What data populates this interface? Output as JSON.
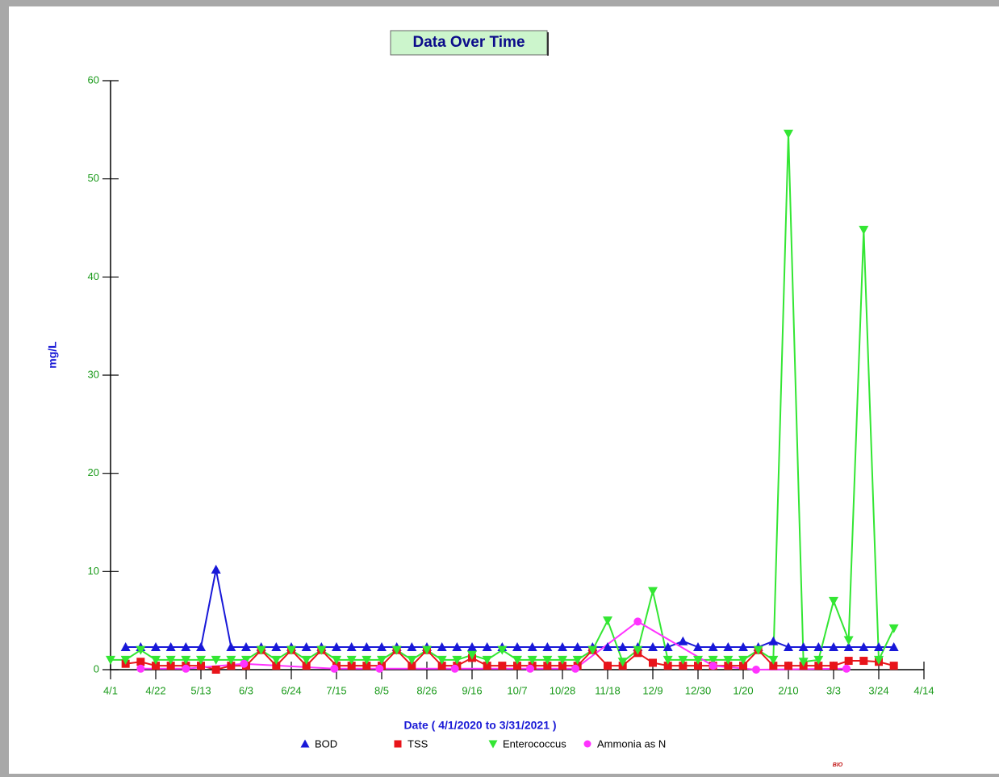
{
  "chart_data": {
    "type": "line",
    "title": "Data Over Time",
    "x_label": "Date  ( 4/1/2020  to  3/31/2021 )",
    "y_label": "mg/L",
    "logo_text": "BIO",
    "xlim": [
      0,
      378
    ],
    "xticks": [
      {
        "value": 0,
        "label": "4/1"
      },
      {
        "value": 21,
        "label": "4/22"
      },
      {
        "value": 42,
        "label": "5/13"
      },
      {
        "value": 63,
        "label": "6/3"
      },
      {
        "value": 84,
        "label": "6/24"
      },
      {
        "value": 105,
        "label": "7/15"
      },
      {
        "value": 126,
        "label": "8/5"
      },
      {
        "value": 147,
        "label": "8/26"
      },
      {
        "value": 168,
        "label": "9/16"
      },
      {
        "value": 189,
        "label": "10/7"
      },
      {
        "value": 210,
        "label": "10/28"
      },
      {
        "value": 231,
        "label": "11/18"
      },
      {
        "value": 252,
        "label": "12/9"
      },
      {
        "value": 273,
        "label": "12/30"
      },
      {
        "value": 294,
        "label": "1/20"
      },
      {
        "value": 315,
        "label": "2/10"
      },
      {
        "value": 336,
        "label": "3/3"
      },
      {
        "value": 357,
        "label": "3/24"
      },
      {
        "value": 378,
        "label": "4/14"
      }
    ],
    "ylim": [
      0,
      60
    ],
    "yticks": [
      0,
      10,
      20,
      30,
      40,
      50,
      60
    ],
    "series": [
      {
        "name": "BOD",
        "color": "#1818d8",
        "marker": "triangle-up",
        "x": [
          7,
          14,
          21,
          28,
          35,
          42,
          49,
          56,
          63,
          70,
          77,
          84,
          91,
          98,
          105,
          112,
          119,
          126,
          133,
          140,
          147,
          154,
          161,
          168,
          175,
          182,
          189,
          196,
          203,
          210,
          217,
          224,
          231,
          238,
          245,
          252,
          259,
          266,
          273,
          280,
          287,
          294,
          301,
          308,
          315,
          322,
          329,
          336,
          343,
          350,
          357,
          364
        ],
        "values": [
          2.3,
          2.3,
          2.3,
          2.3,
          2.3,
          2.3,
          10.2,
          2.3,
          2.3,
          2.3,
          2.3,
          2.3,
          2.3,
          2.3,
          2.3,
          2.3,
          2.3,
          2.3,
          2.3,
          2.3,
          2.3,
          2.3,
          2.3,
          2.3,
          2.3,
          2.3,
          2.3,
          2.3,
          2.3,
          2.3,
          2.3,
          2.3,
          2.3,
          2.3,
          2.3,
          2.3,
          2.3,
          2.9,
          2.3,
          2.3,
          2.3,
          2.3,
          2.3,
          2.9,
          2.3,
          2.3,
          2.3,
          2.3,
          2.3,
          2.3,
          2.3,
          2.3
        ]
      },
      {
        "name": "TSS",
        "color": "#e8141a",
        "marker": "square",
        "x": [
          7,
          14,
          21,
          28,
          35,
          42,
          49,
          56,
          63,
          70,
          77,
          84,
          91,
          98,
          105,
          112,
          119,
          126,
          133,
          140,
          147,
          154,
          161,
          168,
          175,
          182,
          189,
          196,
          203,
          210,
          217,
          224,
          231,
          238,
          245,
          252,
          259,
          266,
          273,
          280,
          287,
          294,
          301,
          308,
          315,
          322,
          329,
          336,
          343,
          350,
          357,
          364
        ],
        "values": [
          0.6,
          0.8,
          0.4,
          0.4,
          0.4,
          0.4,
          0,
          0.4,
          0.4,
          2,
          0.4,
          2,
          0.4,
          2,
          0.4,
          0.4,
          0.4,
          0.4,
          2,
          0.4,
          2,
          0.4,
          0.4,
          1.2,
          0.4,
          0.4,
          0.4,
          0.4,
          0.4,
          0.4,
          0.4,
          2,
          0.4,
          0.4,
          1.7,
          0.7,
          0.4,
          0.4,
          0.4,
          0.4,
          0.4,
          0.4,
          2,
          0.4,
          0.4,
          0.4,
          0.4,
          0.4,
          0.9,
          0.9,
          0.8,
          0.4
        ]
      },
      {
        "name": "Enterococcus",
        "color": "#33e633",
        "marker": "triangle-down",
        "x": [
          0,
          7,
          14,
          21,
          28,
          35,
          42,
          49,
          56,
          63,
          70,
          77,
          84,
          91,
          98,
          105,
          112,
          119,
          126,
          133,
          140,
          147,
          154,
          161,
          168,
          175,
          182,
          189,
          196,
          203,
          210,
          217,
          224,
          231,
          238,
          245,
          252,
          259,
          266,
          273,
          280,
          287,
          294,
          301,
          308,
          315,
          322,
          329,
          336,
          343,
          350,
          357,
          364
        ],
        "values": [
          1,
          1,
          2,
          1,
          1,
          1,
          1,
          1,
          1,
          1,
          2,
          1,
          2,
          1,
          2,
          1,
          1,
          1,
          1,
          2,
          1,
          2,
          1,
          1,
          1.5,
          1,
          2,
          1,
          1,
          1,
          1,
          1,
          2,
          5,
          0.8,
          2,
          8,
          1,
          1,
          1,
          1,
          1,
          1,
          2,
          1,
          54.6,
          0.8,
          1,
          7,
          3,
          44.8,
          1,
          4.2
        ]
      },
      {
        "name": "Ammonia as N",
        "color": "#ff33ff",
        "marker": "circle",
        "x": [
          14,
          35,
          62,
          104,
          125,
          160,
          195,
          216,
          245,
          280,
          300,
          342
        ],
        "values": [
          0.1,
          0.1,
          0.6,
          0.1,
          0.1,
          0.1,
          0.1,
          0.1,
          4.9,
          0.4,
          0,
          0.1
        ]
      }
    ]
  }
}
